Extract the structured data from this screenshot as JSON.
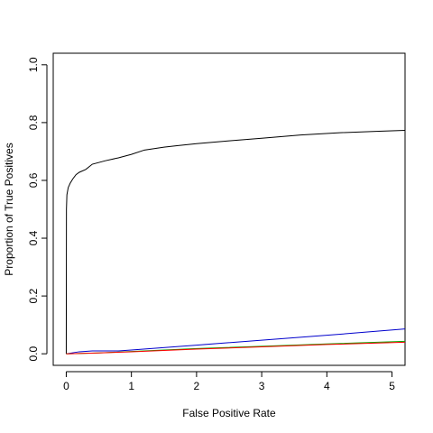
{
  "chart_data": {
    "type": "line",
    "title": "",
    "xlabel": "False Positive Rate",
    "ylabel": "Proportion of True Positives",
    "xlim": [
      -0.2,
      5.2
    ],
    "ylim": [
      -0.04,
      1.04
    ],
    "x_ticks": [
      0,
      1,
      2,
      3,
      4,
      5
    ],
    "y_ticks": [
      0.0,
      0.2,
      0.4,
      0.6,
      0.8,
      1.0
    ],
    "x_tick_labels": [
      "0",
      "1",
      "2",
      "3",
      "4",
      "5"
    ],
    "y_tick_labels": [
      "0.0",
      "0.2",
      "0.4",
      "0.6",
      "0.8",
      "1.0"
    ],
    "grid": false,
    "legend": "none",
    "series": [
      {
        "color": "#000000",
        "points": [
          [
            0,
            0
          ],
          [
            0.003,
            0.5
          ],
          [
            0.01,
            0.55
          ],
          [
            0.03,
            0.575
          ],
          [
            0.06,
            0.59
          ],
          [
            0.1,
            0.605
          ],
          [
            0.15,
            0.62
          ],
          [
            0.2,
            0.628
          ],
          [
            0.3,
            0.638
          ],
          [
            0.4,
            0.656
          ],
          [
            0.6,
            0.668
          ],
          [
            0.8,
            0.678
          ],
          [
            1.0,
            0.69
          ],
          [
            1.2,
            0.705
          ],
          [
            1.5,
            0.715
          ],
          [
            1.7,
            0.72
          ],
          [
            2.0,
            0.727
          ],
          [
            2.5,
            0.737
          ],
          [
            3.0,
            0.746
          ],
          [
            3.6,
            0.757
          ],
          [
            4.2,
            0.765
          ],
          [
            4.8,
            0.77
          ],
          [
            5.2,
            0.773
          ]
        ]
      },
      {
        "color": "#0000cc",
        "points": [
          [
            0,
            0
          ],
          [
            0.2,
            0.007
          ],
          [
            0.4,
            0.01
          ],
          [
            0.8,
            0.01
          ],
          [
            1.0,
            0.013
          ],
          [
            2.0,
            0.03
          ],
          [
            3.0,
            0.047
          ],
          [
            4.0,
            0.064
          ],
          [
            5.2,
            0.086
          ]
        ]
      },
      {
        "color": "#00aa00",
        "points": [
          [
            0,
            0
          ],
          [
            0.5,
            0.003
          ],
          [
            1.0,
            0.008
          ],
          [
            2.0,
            0.018
          ],
          [
            3.0,
            0.026
          ],
          [
            4.0,
            0.034
          ],
          [
            5.2,
            0.043
          ]
        ]
      },
      {
        "color": "#ff0000",
        "points": [
          [
            0,
            0
          ],
          [
            0.5,
            0.003
          ],
          [
            1.0,
            0.007
          ],
          [
            2.0,
            0.016
          ],
          [
            3.0,
            0.024
          ],
          [
            4.0,
            0.032
          ],
          [
            5.2,
            0.04
          ]
        ]
      }
    ]
  }
}
